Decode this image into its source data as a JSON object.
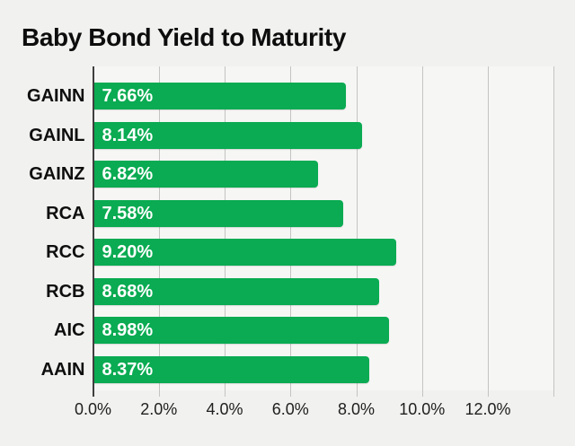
{
  "title": "Baby Bond Yield to Maturity",
  "colors": {
    "background": "#f1f1ef",
    "plot_background": "#f6f6f5",
    "bar_fill": "#0aab52",
    "bar_label_text": "#ffffff",
    "axis_line": "#3f3f3f",
    "gridline": "#c4c4c3",
    "tick_text": "#202020",
    "title_text": "#0d0d0d",
    "category_text": "#0e0e0e"
  },
  "chart_data": {
    "type": "bar",
    "orientation": "horizontal",
    "title": "Baby Bond Yield to Maturity",
    "categories": [
      "GAINN",
      "GAINL",
      "GAINZ",
      "RCA",
      "RCC",
      "RCB",
      "AIC",
      "AAIN"
    ],
    "values": [
      7.66,
      8.14,
      6.82,
      7.58,
      9.2,
      8.68,
      8.98,
      8.37
    ],
    "value_labels": [
      "7.66%",
      "8.14%",
      "6.82%",
      "7.58%",
      "9.20%",
      "8.68%",
      "8.98%",
      "8.37%"
    ],
    "xlabel": "",
    "ylabel": "",
    "x_ticks": [
      "0.0%",
      "2.0%",
      "4.0%",
      "6.0%",
      "8.0%",
      "10.0%",
      "12.0%"
    ],
    "x_tick_values": [
      0,
      2,
      4,
      6,
      8,
      10,
      12
    ],
    "xlim": [
      0,
      14
    ],
    "grid_step": 2,
    "grid": true,
    "legend": false
  }
}
